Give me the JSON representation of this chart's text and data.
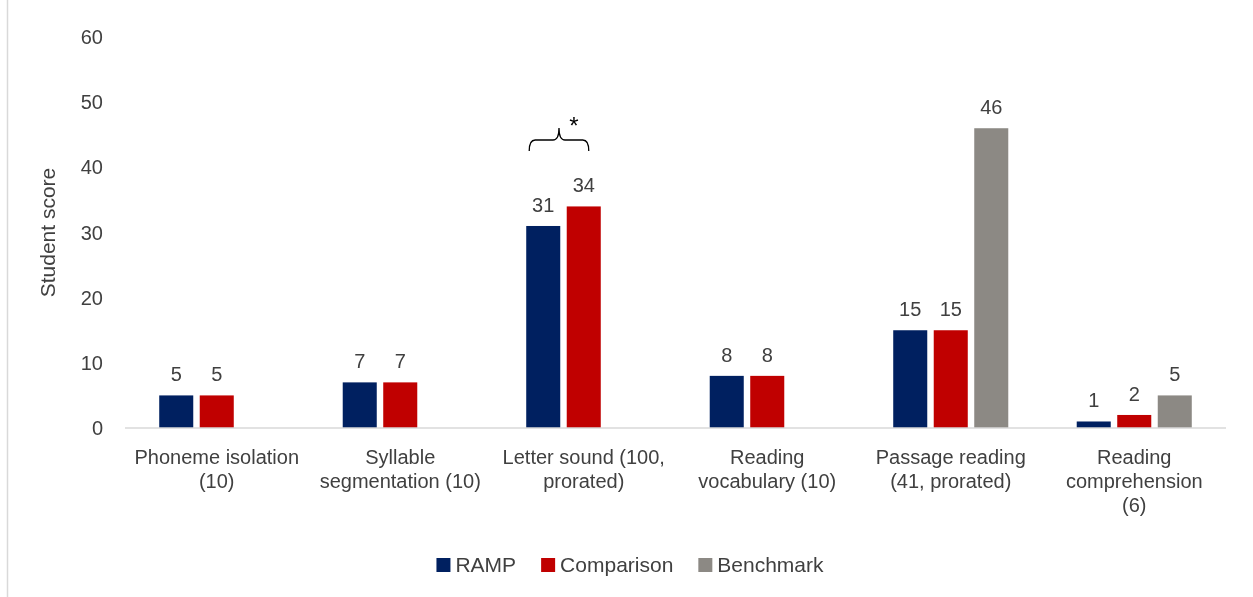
{
  "chart_data": {
    "type": "bar",
    "ylabel": "Student score",
    "categories": [
      "Phoneme isolation\n(10)",
      "Syllable\nsegmentation (10)",
      "Letter sound (100,\nprorated)",
      "Reading\nvocabulary (10)",
      "Passage reading\n(41, prorated)",
      "Reading\ncomprehension\n(6)"
    ],
    "series": [
      {
        "name": "RAMP",
        "color": "#002060",
        "values": [
          5,
          7,
          31,
          8,
          15,
          1
        ]
      },
      {
        "name": "Comparison",
        "color": "#c00000",
        "values": [
          5,
          7,
          34,
          8,
          15,
          2
        ]
      },
      {
        "name": "Benchmark",
        "color": "#8c8984",
        "values": [
          null,
          null,
          null,
          null,
          46,
          5
        ]
      }
    ],
    "ylim": [
      0,
      60
    ],
    "yticks": [
      0,
      10,
      20,
      30,
      40,
      50,
      60
    ],
    "data_labels": true,
    "legend": "bottom",
    "annotations": [
      "*"
    ]
  }
}
